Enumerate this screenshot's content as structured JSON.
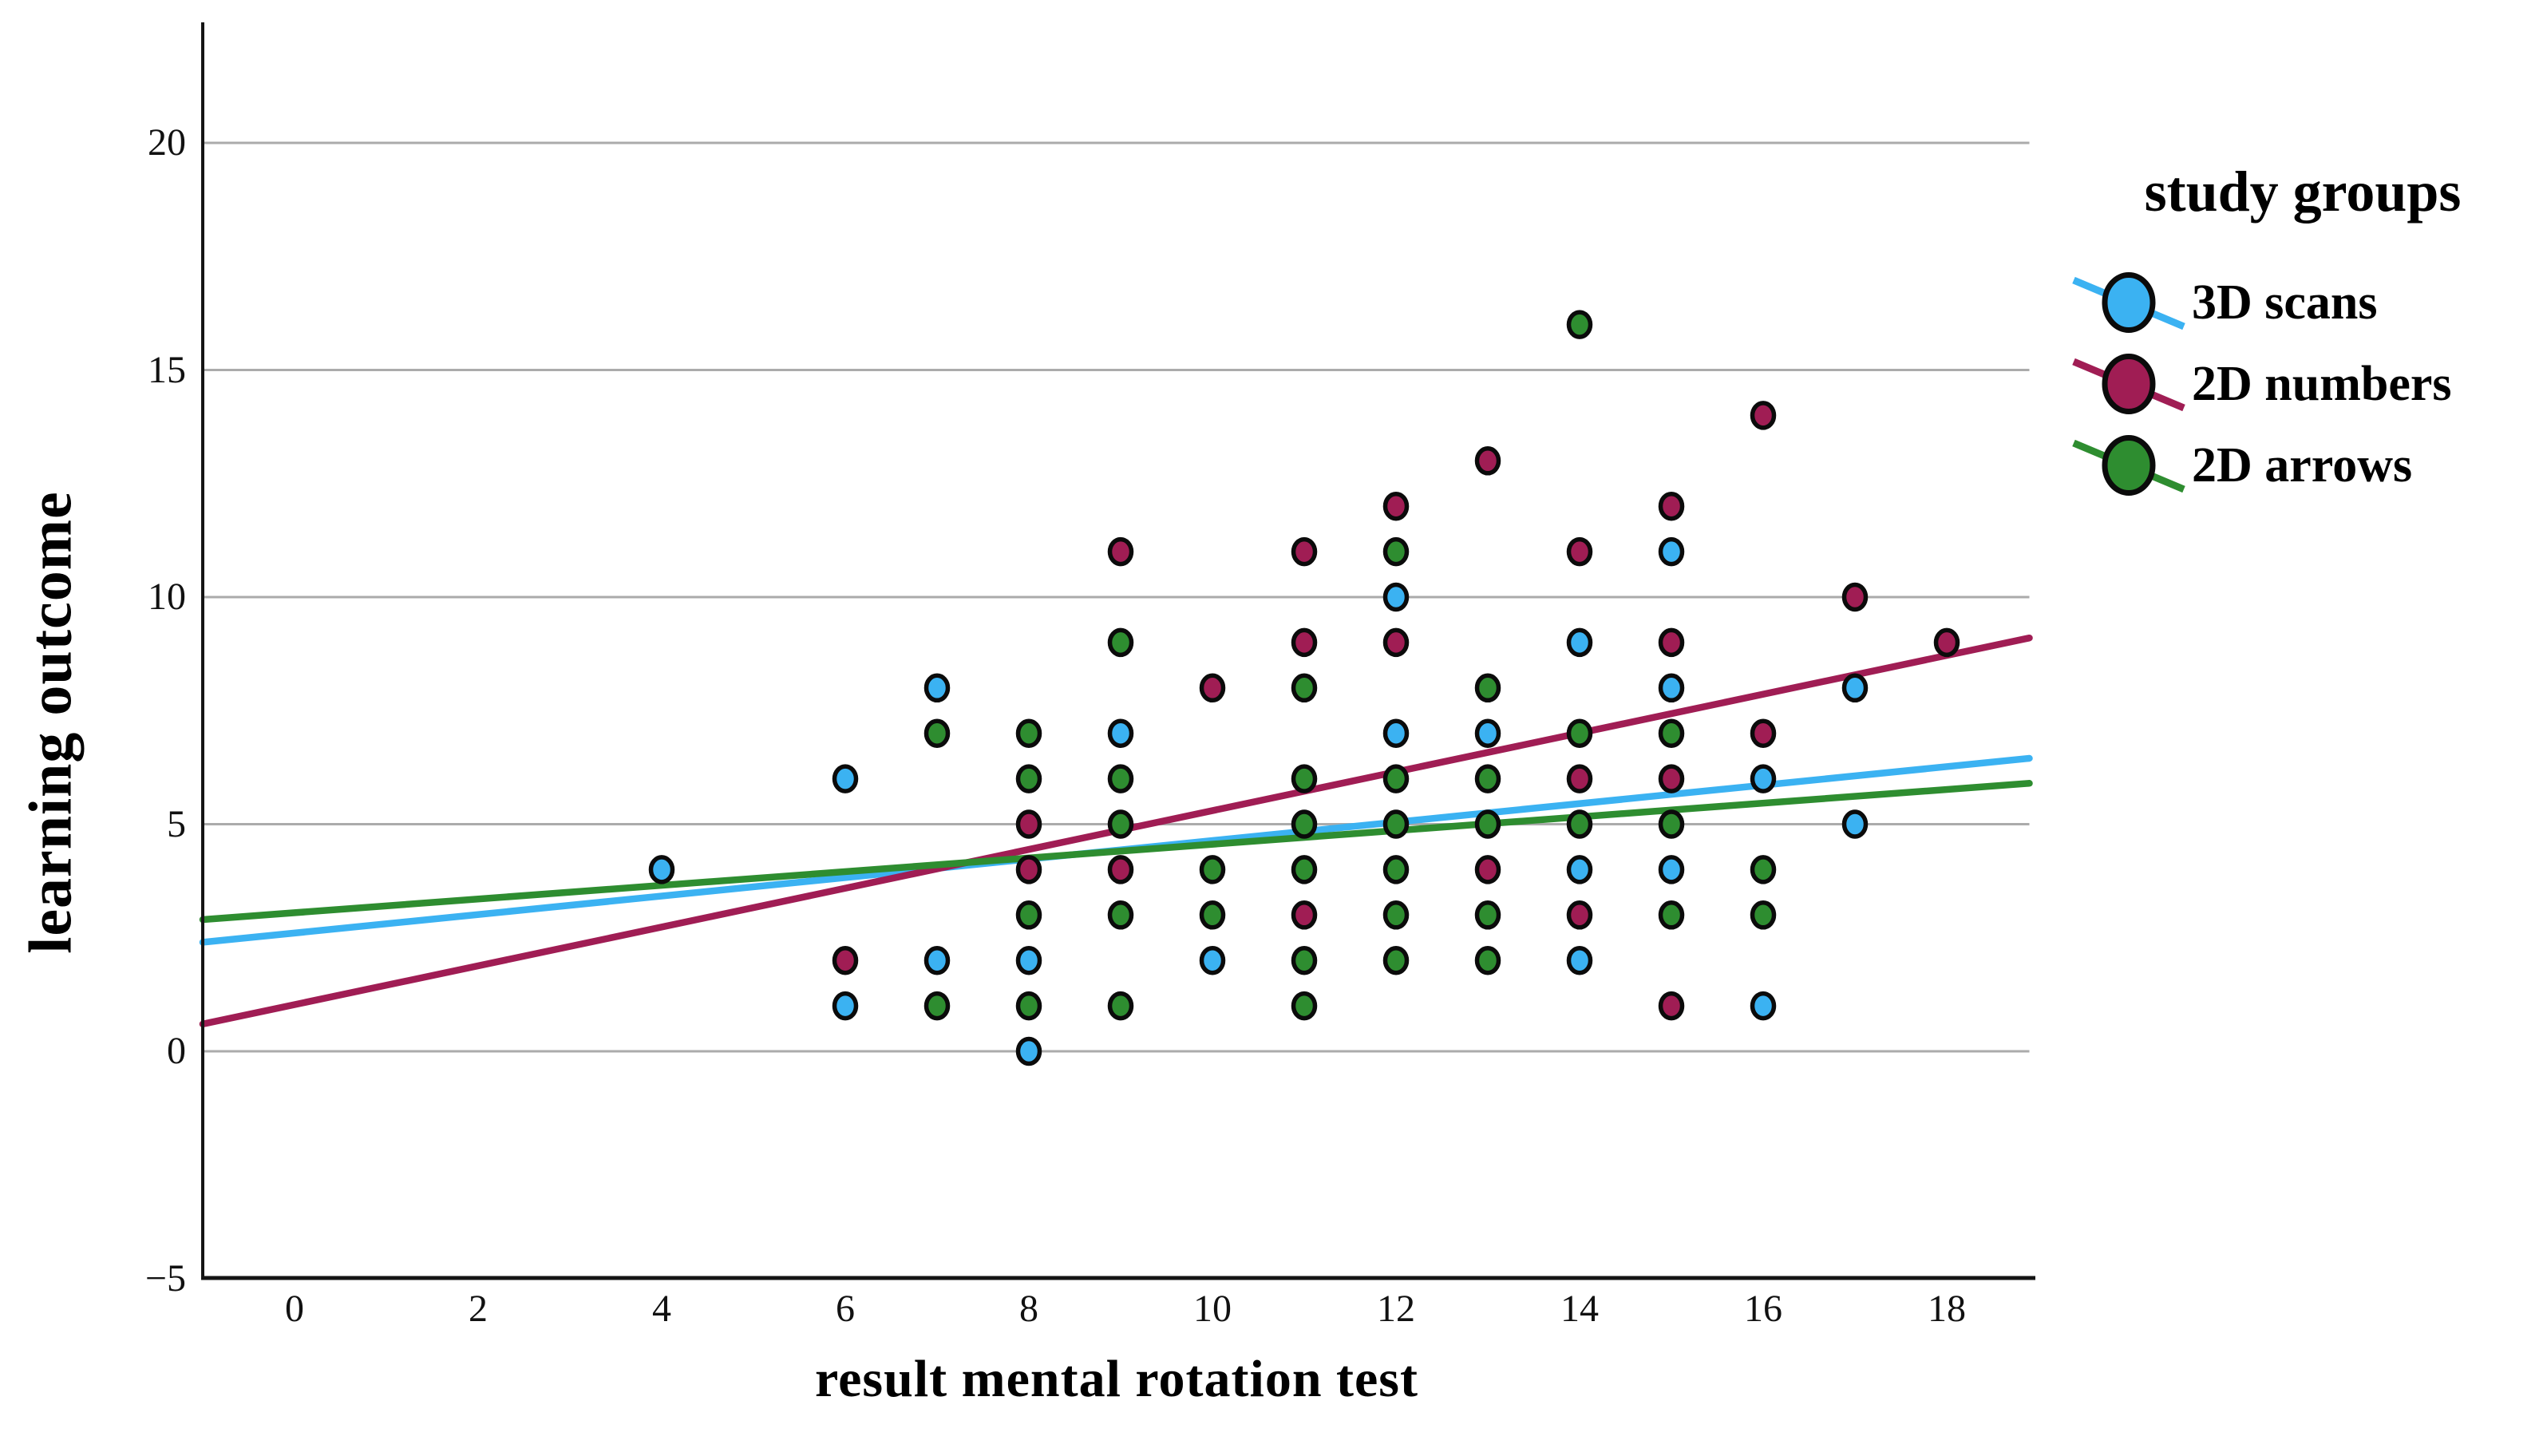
{
  "chart_data": {
    "type": "scatter",
    "title": "",
    "xlabel": "result mental rotation test",
    "ylabel": "learning outcome",
    "legend_title": "study groups",
    "legend_position": "right",
    "xlim": [
      -1,
      18.9
    ],
    "ylim": [
      -5,
      22.5
    ],
    "x_ticks": [
      0,
      2,
      4,
      6,
      8,
      10,
      12,
      14,
      16,
      18
    ],
    "y_ticks": [
      20,
      15,
      10,
      5,
      0,
      -5
    ],
    "y_tick_labels": [
      "20",
      "15",
      "10",
      "5",
      "0",
      "−5"
    ],
    "grid_y": [
      20,
      15,
      10,
      5,
      0
    ],
    "grid_on": true,
    "grid_color": "#ABABAB",
    "axis_color": "#141414",
    "marker_outline_color": "#0B0B0B",
    "series": [
      {
        "name": "3D scans",
        "color": "#3BB2F2",
        "points": [
          [
            4,
            4
          ],
          [
            6,
            6
          ],
          [
            6,
            1
          ],
          [
            7,
            8
          ],
          [
            7,
            2
          ],
          [
            8,
            2
          ],
          [
            8,
            0
          ],
          [
            9,
            7
          ],
          [
            10,
            2
          ],
          [
            12,
            10
          ],
          [
            12,
            7
          ],
          [
            13,
            7
          ],
          [
            14,
            9
          ],
          [
            14,
            4
          ],
          [
            14,
            2
          ],
          [
            15,
            11
          ],
          [
            15,
            8
          ],
          [
            15,
            4
          ],
          [
            16,
            6
          ],
          [
            16,
            1
          ],
          [
            17,
            8
          ],
          [
            17,
            5
          ]
        ],
        "trend": {
          "x1": -1,
          "y1": 2.4,
          "x2": 18.9,
          "y2": 6.45
        }
      },
      {
        "name": "2D numbers",
        "color": "#A01D54",
        "points": [
          [
            6,
            2
          ],
          [
            8,
            5
          ],
          [
            8,
            4
          ],
          [
            9,
            11
          ],
          [
            9,
            4
          ],
          [
            10,
            8
          ],
          [
            11,
            11
          ],
          [
            11,
            9
          ],
          [
            11,
            3
          ],
          [
            12,
            12
          ],
          [
            12,
            9
          ],
          [
            13,
            13
          ],
          [
            13,
            4
          ],
          [
            14,
            11
          ],
          [
            14,
            6
          ],
          [
            14,
            3
          ],
          [
            15,
            12
          ],
          [
            15,
            9
          ],
          [
            15,
            6
          ],
          [
            15,
            1
          ],
          [
            16,
            14
          ],
          [
            16,
            7
          ],
          [
            17,
            10
          ],
          [
            18,
            9
          ]
        ],
        "trend": {
          "x1": -1,
          "y1": 0.6,
          "x2": 18.9,
          "y2": 9.1
        }
      },
      {
        "name": "2D arrows",
        "color": "#2E8D30",
        "points": [
          [
            7,
            7
          ],
          [
            7,
            1
          ],
          [
            8,
            7
          ],
          [
            8,
            6
          ],
          [
            8,
            3
          ],
          [
            8,
            1
          ],
          [
            9,
            9
          ],
          [
            9,
            6
          ],
          [
            9,
            5
          ],
          [
            9,
            3
          ],
          [
            9,
            1
          ],
          [
            10,
            4
          ],
          [
            10,
            3
          ],
          [
            11,
            8
          ],
          [
            11,
            6
          ],
          [
            11,
            5
          ],
          [
            11,
            4
          ],
          [
            11,
            2
          ],
          [
            11,
            1
          ],
          [
            12,
            11
          ],
          [
            12,
            6
          ],
          [
            12,
            5
          ],
          [
            12,
            4
          ],
          [
            12,
            3
          ],
          [
            12,
            2
          ],
          [
            13,
            8
          ],
          [
            13,
            6
          ],
          [
            13,
            5
          ],
          [
            13,
            3
          ],
          [
            13,
            2
          ],
          [
            14,
            16
          ],
          [
            14,
            7
          ],
          [
            14,
            5
          ],
          [
            15,
            7
          ],
          [
            15,
            5
          ],
          [
            15,
            3
          ],
          [
            16,
            4
          ],
          [
            16,
            3
          ]
        ],
        "trend": {
          "x1": -1,
          "y1": 2.9,
          "x2": 18.9,
          "y2": 5.9
        }
      }
    ]
  }
}
